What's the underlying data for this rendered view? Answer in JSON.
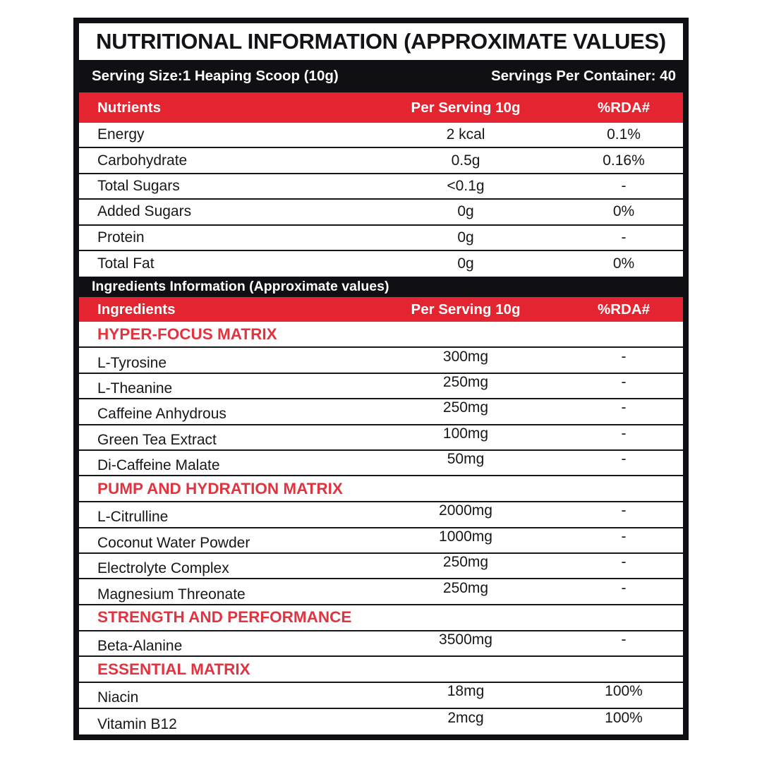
{
  "label": {
    "title": "NUTRITIONAL INFORMATION (APPROXIMATE VALUES)",
    "serving_size": "Serving Size:1 Heaping Scoop (10g)",
    "servings_per_container": "Servings Per Container: 40",
    "colors": {
      "red_bar": "#e42430",
      "section_title_red": "#e13440",
      "frame_black": "#101014",
      "row_text": "#17171b"
    },
    "nutrients_table": {
      "headers": [
        "Nutrients",
        "Per Serving 10g",
        "%RDA#"
      ],
      "rows": [
        {
          "name": "Energy",
          "value": "2 kcal",
          "rda": "0.1%"
        },
        {
          "name": "Carbohydrate",
          "value": "0.5g",
          "rda": "0.16%"
        },
        {
          "name": "Total Sugars",
          "value": "<0.1g",
          "rda": "-"
        },
        {
          "name": "Added Sugars",
          "value": "0g",
          "rda": "0%"
        },
        {
          "name": "Protein",
          "value": "0g",
          "rda": "-"
        },
        {
          "name": "Total Fat",
          "value": "0g",
          "rda": "0%"
        }
      ]
    },
    "ingredients_band": "Ingredients Information (Approximate values)",
    "ingredients_table": {
      "headers": [
        "Ingredients",
        "Per Serving 10g",
        "%RDA#"
      ],
      "sections": [
        {
          "title": "HYPER-FOCUS MATRIX",
          "rows": [
            {
              "name": "L-Tyrosine",
              "value": "300mg",
              "rda": "-"
            },
            {
              "name": "L-Theanine",
              "value": "250mg",
              "rda": "-"
            },
            {
              "name": "Caffeine Anhydrous",
              "value": "250mg",
              "rda": "-"
            },
            {
              "name": "Green Tea Extract",
              "value": "100mg",
              "rda": "-"
            },
            {
              "name": "Di-Caffeine Malate",
              "value": "50mg",
              "rda": "-"
            }
          ]
        },
        {
          "title": "PUMP AND HYDRATION MATRIX",
          "rows": [
            {
              "name": "L-Citrulline",
              "value": "2000mg",
              "rda": "-"
            },
            {
              "name": "Coconut Water Powder",
              "value": "1000mg",
              "rda": "-"
            },
            {
              "name": "Electrolyte Complex",
              "value": "250mg",
              "rda": "-"
            },
            {
              "name": "Magnesium Threonate",
              "value": "250mg",
              "rda": "-"
            }
          ]
        },
        {
          "title": "STRENGTH AND PERFORMANCE",
          "rows": [
            {
              "name": "Beta-Alanine",
              "value": "3500mg",
              "rda": "-"
            }
          ]
        },
        {
          "title": "ESSENTIAL MATRIX",
          "rows": [
            {
              "name": "Niacin",
              "value": "18mg",
              "rda": "100%"
            },
            {
              "name": "Vitamin B12",
              "value": "2mcg",
              "rda": "100%"
            }
          ]
        }
      ]
    }
  }
}
